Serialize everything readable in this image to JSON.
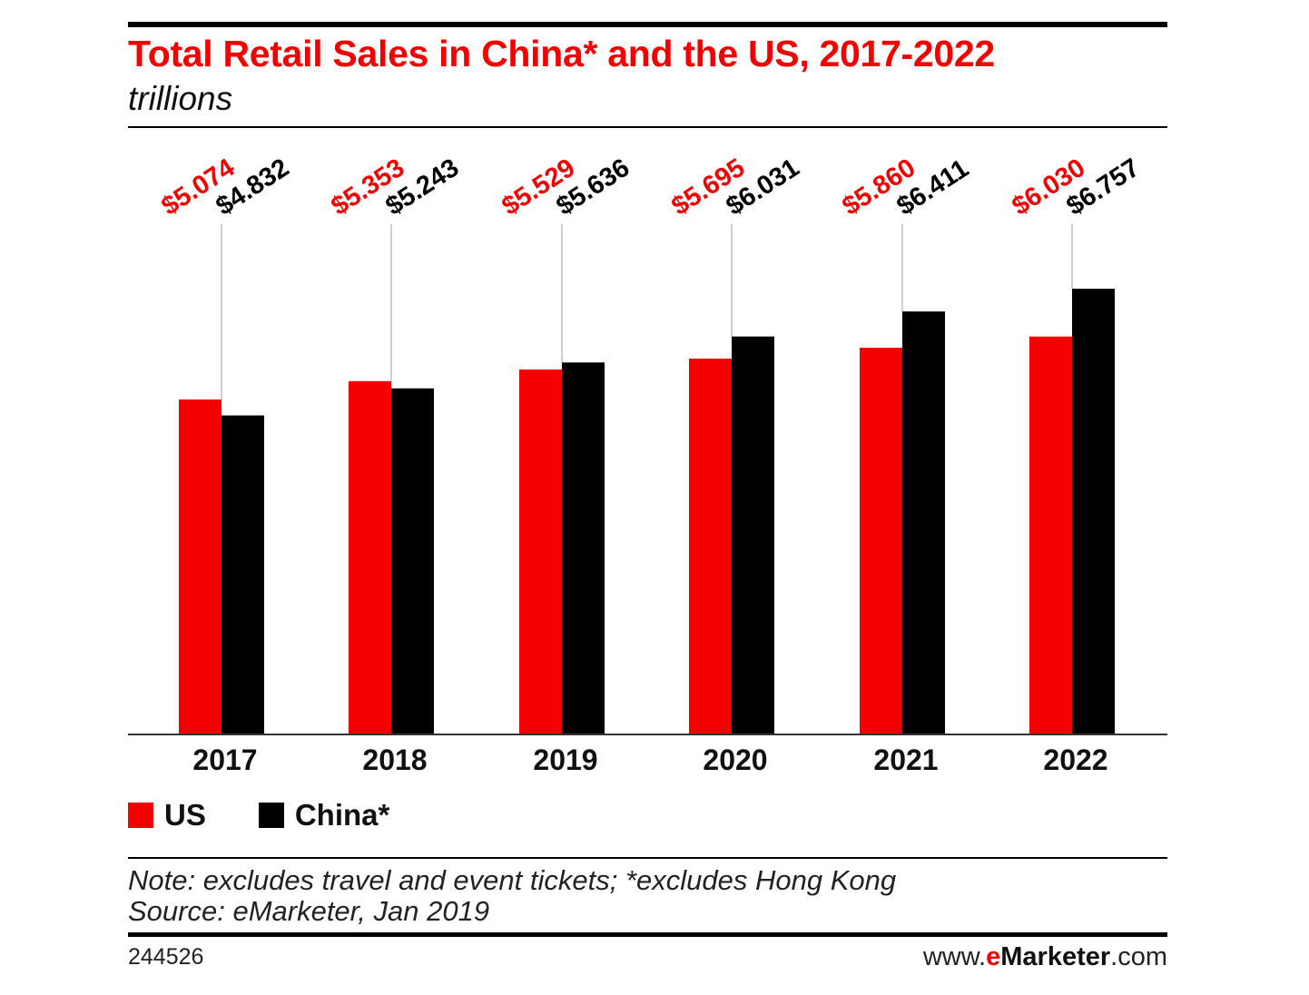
{
  "header": {
    "title": "Total Retail Sales in China* and the US, 2017-2022",
    "subtitle": "trillions"
  },
  "legend": {
    "us_label": "US",
    "china_label": "China*"
  },
  "footer": {
    "note": "Note: excludes travel and event tickets; *excludes Hong Kong",
    "source": "Source: eMarketer, Jan 2019",
    "chart_id": "244526",
    "site_prefix": "www.",
    "site_e": "e",
    "site_name": "Marketer",
    "site_suffix": ".com"
  },
  "colors": {
    "us": "#f40000",
    "china": "#000000"
  },
  "chart_data": {
    "type": "bar",
    "title": "Total Retail Sales in China* and the US, 2017-2022",
    "subtitle": "trillions",
    "categories": [
      "2017",
      "2018",
      "2019",
      "2020",
      "2021",
      "2022"
    ],
    "series": [
      {
        "name": "US",
        "values": [
          5.074,
          5.353,
          5.529,
          5.695,
          5.86,
          6.03
        ],
        "labels": [
          "$5.074",
          "$5.353",
          "$5.529",
          "$5.695",
          "$5.860",
          "$6.030"
        ]
      },
      {
        "name": "China*",
        "values": [
          4.832,
          5.243,
          5.636,
          6.031,
          6.411,
          6.757
        ],
        "labels": [
          "$4.832",
          "$5.243",
          "$5.636",
          "$6.031",
          "$6.411",
          "$6.757"
        ]
      }
    ],
    "ylim": [
      0,
      6.757
    ],
    "legend_position": "bottom-left",
    "grid": false
  }
}
